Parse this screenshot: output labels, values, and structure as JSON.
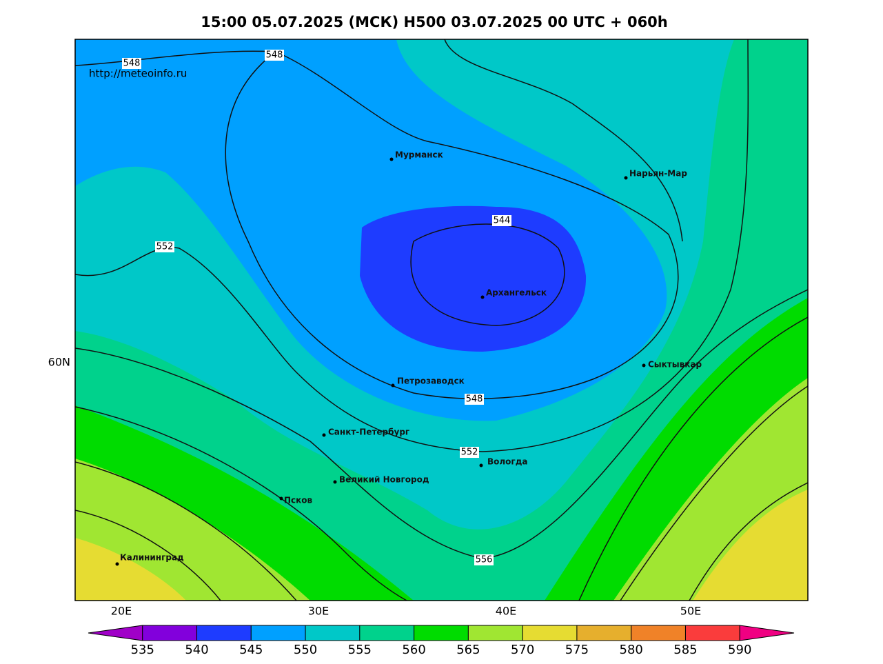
{
  "title": "15:00 05.07.2025 (МСК) H500  03.07.2025 00 UTC + 060h",
  "watermark": "http://meteoinfo.ru",
  "lon_labels": [
    "20E",
    "30E",
    "40E",
    "50E"
  ],
  "lat_labels": [
    "60N"
  ],
  "cities": [
    "Мурманск",
    "Нарьян-Мар",
    "Архангельск",
    "Сыктывкар",
    "Петрозаводск",
    "Санкт-Петербург",
    "Вологда",
    "Великий Новгород",
    "Псков",
    "Калининград"
  ],
  "contour_labels": [
    548,
    548,
    552,
    544,
    548,
    552,
    556
  ],
  "colorbar": {
    "levels": [
      535,
      540,
      545,
      550,
      555,
      560,
      565,
      570,
      575,
      580,
      585,
      590
    ],
    "colors": [
      "#a000c8",
      "#8200dc",
      "#1e3cff",
      "#00a0ff",
      "#00c8c8",
      "#00d28c",
      "#00dc00",
      "#a0e632",
      "#e6dc32",
      "#e6af2d",
      "#f08228",
      "#fa3c3c",
      "#f00082"
    ]
  }
}
